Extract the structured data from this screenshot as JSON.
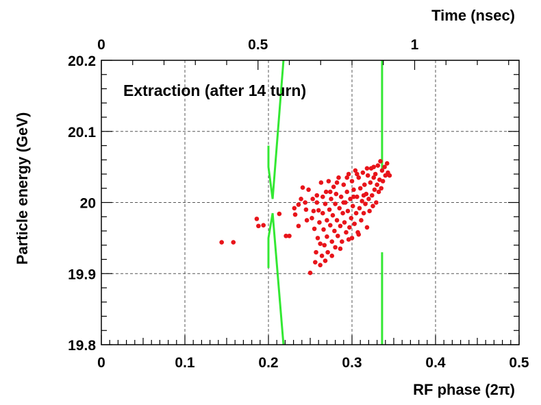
{
  "chart_data": {
    "type": "scatter",
    "title": "Extraction (after 14 turn)",
    "xlabel": "RF phase (2π)",
    "ylabel": "Particle energy (GeV)",
    "top_axis_label": "Time (nsec)",
    "xlim": [
      0,
      0.5
    ],
    "ylim": [
      19.8,
      20.2
    ],
    "grid": true,
    "x_ticks": [
      "0",
      "0.1",
      "0.2",
      "0.3",
      "0.4",
      "0.5"
    ],
    "y_ticks": [
      "19.8",
      "19.9",
      "20",
      "20.1",
      "20.2"
    ],
    "top_ticks": [
      "0",
      "0.5",
      "1"
    ],
    "top_tick_positions": [
      0,
      0.1875,
      0.375
    ],
    "colors": {
      "points": "#e8141a",
      "separatrix": "#33e833"
    },
    "separatrix": [
      {
        "x": [
          0.2,
          0.2,
          0.205,
          0.218
        ],
        "y": [
          19.908,
          19.95,
          19.985,
          19.8
        ]
      },
      {
        "x": [
          0.218,
          0.205,
          0.2,
          0.2
        ],
        "y": [
          20.2,
          20.005,
          20.05,
          20.08
        ]
      },
      {
        "x": [
          0.336,
          0.336
        ],
        "y": [
          20.2,
          20.045
        ]
      },
      {
        "x": [
          0.336,
          0.336
        ],
        "y": [
          19.93,
          19.8
        ]
      }
    ],
    "series": [
      {
        "values": [
          [
            0.144,
            19.944
          ],
          [
            0.158,
            19.944
          ],
          [
            0.186,
            19.977
          ],
          [
            0.188,
            19.967
          ],
          [
            0.194,
            19.968
          ],
          [
            0.213,
            19.984
          ],
          [
            0.221,
            19.953
          ],
          [
            0.225,
            19.953
          ],
          [
            0.231,
            19.992
          ],
          [
            0.232,
            19.983
          ],
          [
            0.236,
            19.997
          ],
          [
            0.236,
            19.967
          ],
          [
            0.239,
            20.005
          ],
          [
            0.241,
            20.021
          ],
          [
            0.244,
            20.0
          ],
          [
            0.245,
            19.99
          ],
          [
            0.248,
            20.018
          ],
          [
            0.25,
            19.901
          ],
          [
            0.252,
            19.978
          ],
          [
            0.253,
            20.005
          ],
          [
            0.255,
            19.963
          ],
          [
            0.256,
            19.916
          ],
          [
            0.257,
            19.93
          ],
          [
            0.258,
            20.01
          ],
          [
            0.259,
            19.95
          ],
          [
            0.26,
            19.989
          ],
          [
            0.261,
            19.972
          ],
          [
            0.262,
            19.912
          ],
          [
            0.263,
            20.028
          ],
          [
            0.264,
            19.925
          ],
          [
            0.265,
            19.985
          ],
          [
            0.265,
            20.008
          ],
          [
            0.266,
            19.962
          ],
          [
            0.267,
            19.94
          ],
          [
            0.268,
            19.998
          ],
          [
            0.269,
            20.015
          ],
          [
            0.27,
            19.975
          ],
          [
            0.27,
            19.952
          ],
          [
            0.271,
            19.93
          ],
          [
            0.272,
            20.03
          ],
          [
            0.273,
            19.99
          ],
          [
            0.274,
            19.968
          ],
          [
            0.275,
            20.005
          ],
          [
            0.276,
            19.945
          ],
          [
            0.277,
            19.982
          ],
          [
            0.278,
            20.022
          ],
          [
            0.279,
            19.96
          ],
          [
            0.28,
            19.998
          ],
          [
            0.28,
            19.937
          ],
          [
            0.281,
            20.012
          ],
          [
            0.282,
            19.975
          ],
          [
            0.283,
            19.953
          ],
          [
            0.284,
            20.035
          ],
          [
            0.285,
            19.992
          ],
          [
            0.286,
            19.967
          ],
          [
            0.287,
            20.008
          ],
          [
            0.288,
            19.945
          ],
          [
            0.289,
            19.985
          ],
          [
            0.29,
            20.025
          ],
          [
            0.291,
            19.972
          ],
          [
            0.292,
            20.0
          ],
          [
            0.293,
            19.958
          ],
          [
            0.294,
            20.015
          ],
          [
            0.295,
            19.988
          ],
          [
            0.296,
            20.04
          ],
          [
            0.297,
            19.965
          ],
          [
            0.298,
            20.005
          ],
          [
            0.299,
            19.978
          ],
          [
            0.3,
            20.03
          ],
          [
            0.3,
            19.95
          ],
          [
            0.301,
            19.995
          ],
          [
            0.302,
            20.018
          ],
          [
            0.303,
            19.97
          ],
          [
            0.304,
            20.045
          ],
          [
            0.305,
            19.985
          ],
          [
            0.306,
            20.008
          ],
          [
            0.307,
            19.958
          ],
          [
            0.308,
            20.035
          ],
          [
            0.309,
            19.992
          ],
          [
            0.31,
            20.02
          ],
          [
            0.311,
            19.975
          ],
          [
            0.312,
            20.002
          ],
          [
            0.313,
            20.042
          ],
          [
            0.314,
            19.985
          ],
          [
            0.315,
            20.025
          ],
          [
            0.316,
            19.998
          ],
          [
            0.317,
            20.012
          ],
          [
            0.318,
            19.965
          ],
          [
            0.319,
            20.038
          ],
          [
            0.32,
            20.005
          ],
          [
            0.321,
            19.988
          ],
          [
            0.322,
            20.028
          ],
          [
            0.323,
            20.048
          ],
          [
            0.324,
            20.01
          ],
          [
            0.325,
            19.995
          ],
          [
            0.326,
            20.035
          ],
          [
            0.327,
            20.018
          ],
          [
            0.328,
            20.04
          ],
          [
            0.329,
            20.0
          ],
          [
            0.33,
            20.025
          ],
          [
            0.331,
            20.052
          ],
          [
            0.332,
            20.015
          ],
          [
            0.333,
            20.032
          ],
          [
            0.334,
            20.058
          ],
          [
            0.335,
            20.02
          ],
          [
            0.336,
            20.045
          ],
          [
            0.337,
            20.03
          ],
          [
            0.339,
            20.05
          ],
          [
            0.34,
            20.038
          ],
          [
            0.342,
            20.055
          ],
          [
            0.343,
            20.042
          ],
          [
            0.345,
            20.038
          ],
          [
            0.262,
            19.942
          ],
          [
            0.268,
            19.918
          ],
          [
            0.276,
            19.925
          ],
          [
            0.286,
            19.935
          ],
          [
            0.296,
            19.948
          ],
          [
            0.308,
            19.955
          ],
          [
            0.258,
            20.0
          ],
          [
            0.29,
            20.0
          ],
          [
            0.302,
            20.008
          ],
          [
            0.314,
            20.01
          ],
          [
            0.246,
            19.975
          ],
          [
            0.254,
            19.988
          ],
          [
            0.274,
            20.015
          ],
          [
            0.282,
            20.028
          ],
          [
            0.294,
            20.035
          ],
          [
            0.306,
            20.04
          ],
          [
            0.318,
            20.048
          ],
          [
            0.326,
            20.05
          ]
        ]
      }
    ]
  }
}
